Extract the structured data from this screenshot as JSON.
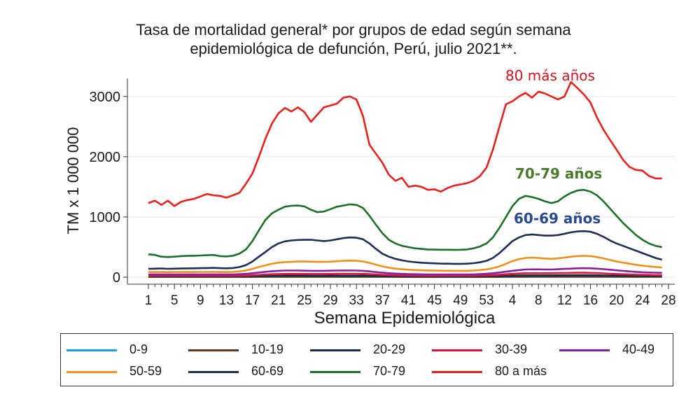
{
  "chart_data": {
    "type": "line",
    "title_lines": [
      "Tasa de mortalidad general* por grupos de edad según semana",
      "epidemiológica de defunción, Perú, julio 2021**."
    ],
    "xlabel": "Semana Epidemiológica",
    "ylabel": "TM x 1 000 000",
    "ylim": [
      0,
      3300
    ],
    "yticks": [
      0,
      1000,
      2000,
      3000
    ],
    "x_tick_labels": [
      "1",
      "5",
      "9",
      "13",
      "17",
      "21",
      "25",
      "29",
      "33",
      "37",
      "41",
      "45",
      "49",
      "53",
      "4",
      "8",
      "12",
      "16",
      "20",
      "24",
      "28"
    ],
    "x_tick_labels_minor_count": 81,
    "grid": true,
    "legend_position": "bottom",
    "x_count": 80,
    "series": [
      {
        "name": "0-9",
        "color": "#1f9ee8",
        "values": [
          8,
          8,
          8,
          8,
          8,
          8,
          8,
          8,
          8,
          8,
          8,
          8,
          8,
          8,
          8,
          8,
          8,
          8,
          8,
          8,
          8,
          8,
          8,
          8,
          8,
          8,
          8,
          8,
          8,
          8,
          8,
          8,
          8,
          8,
          8,
          8,
          8,
          8,
          8,
          8,
          8,
          8,
          8,
          8,
          8,
          8,
          8,
          8,
          8,
          8,
          8,
          8,
          8,
          8,
          8,
          8,
          8,
          8,
          8,
          8,
          8,
          8,
          8,
          8,
          8,
          8,
          8,
          8,
          8,
          8,
          8,
          8,
          8,
          8,
          8,
          8,
          8,
          8,
          8,
          8
        ]
      },
      {
        "name": "10-19",
        "color": "#5a3a1a",
        "values": [
          5,
          5,
          5,
          5,
          5,
          5,
          5,
          5,
          5,
          5,
          5,
          5,
          5,
          5,
          5,
          5,
          5,
          6,
          6,
          7,
          7,
          7,
          7,
          7,
          7,
          7,
          7,
          7,
          7,
          7,
          7,
          7,
          7,
          7,
          6,
          6,
          6,
          6,
          5,
          5,
          5,
          5,
          5,
          5,
          5,
          5,
          5,
          5,
          5,
          5,
          5,
          5,
          5,
          5,
          5,
          6,
          6,
          7,
          7,
          8,
          8,
          8,
          8,
          8,
          8,
          8,
          8,
          8,
          8,
          8,
          8,
          8,
          7,
          7,
          7,
          6,
          6,
          6,
          6,
          6
        ]
      },
      {
        "name": "20-29",
        "color": "#1b2a4a",
        "values": [
          12,
          12,
          12,
          12,
          12,
          12,
          12,
          12,
          12,
          12,
          12,
          12,
          12,
          12,
          13,
          14,
          16,
          18,
          20,
          22,
          24,
          25,
          25,
          25,
          25,
          24,
          24,
          24,
          25,
          25,
          26,
          26,
          26,
          25,
          23,
          20,
          18,
          16,
          15,
          14,
          13,
          13,
          12,
          12,
          12,
          12,
          12,
          12,
          12,
          12,
          12,
          13,
          14,
          16,
          18,
          22,
          25,
          28,
          30,
          30,
          30,
          30,
          30,
          31,
          32,
          33,
          34,
          34,
          33,
          31,
          29,
          27,
          25,
          23,
          22,
          20,
          19,
          18,
          17,
          17
        ]
      },
      {
        "name": "30-39",
        "color": "#d41c3c",
        "values": [
          22,
          22,
          22,
          22,
          22,
          22,
          22,
          22,
          22,
          22,
          22,
          22,
          22,
          22,
          24,
          27,
          32,
          38,
          44,
          50,
          54,
          56,
          56,
          56,
          56,
          55,
          55,
          55,
          56,
          57,
          58,
          58,
          58,
          56,
          52,
          46,
          40,
          35,
          32,
          30,
          28,
          27,
          26,
          26,
          25,
          25,
          25,
          25,
          25,
          25,
          26,
          28,
          31,
          36,
          42,
          50,
          56,
          62,
          66,
          66,
          66,
          66,
          66,
          68,
          70,
          72,
          74,
          74,
          72,
          68,
          64,
          58,
          54,
          50,
          46,
          42,
          40,
          38,
          36,
          35
        ]
      },
      {
        "name": "40-49",
        "color": "#8a1fa0",
        "values": [
          45,
          45,
          45,
          45,
          45,
          45,
          45,
          45,
          45,
          45,
          45,
          45,
          45,
          45,
          50,
          56,
          66,
          78,
          90,
          100,
          106,
          110,
          110,
          110,
          108,
          106,
          106,
          106,
          108,
          110,
          112,
          112,
          110,
          106,
          96,
          85,
          74,
          66,
          60,
          56,
          52,
          50,
          48,
          47,
          46,
          45,
          45,
          45,
          45,
          45,
          47,
          51,
          57,
          66,
          78,
          92,
          106,
          118,
          128,
          130,
          130,
          128,
          128,
          132,
          138,
          142,
          148,
          150,
          148,
          142,
          134,
          124,
          114,
          104,
          96,
          88,
          82,
          78,
          75,
          72
        ]
      },
      {
        "name": "50-59",
        "color": "#f0901a",
        "values": [
          85,
          86,
          86,
          85,
          86,
          86,
          86,
          86,
          87,
          87,
          88,
          86,
          86,
          88,
          96,
          112,
          138,
          170,
          198,
          222,
          240,
          250,
          255,
          260,
          262,
          258,
          255,
          254,
          258,
          265,
          272,
          275,
          272,
          262,
          238,
          208,
          180,
          158,
          142,
          132,
          124,
          118,
          114,
          112,
          110,
          108,
          107,
          106,
          106,
          106,
          110,
          118,
          130,
          150,
          180,
          222,
          268,
          300,
          320,
          325,
          318,
          310,
          306,
          312,
          325,
          340,
          350,
          355,
          350,
          334,
          312,
          286,
          262,
          242,
          224,
          206,
          192,
          180,
          170,
          162
        ]
      },
      {
        "name": "60-69",
        "color": "#1e2d54",
        "values": [
          140,
          142,
          145,
          140,
          142,
          144,
          146,
          148,
          150,
          152,
          155,
          150,
          148,
          152,
          168,
          200,
          260,
          340,
          420,
          500,
          560,
          595,
          610,
          618,
          620,
          622,
          610,
          600,
          610,
          630,
          650,
          660,
          655,
          630,
          560,
          470,
          390,
          340,
          305,
          280,
          262,
          250,
          240,
          235,
          230,
          226,
          224,
          222,
          222,
          224,
          232,
          248,
          272,
          320,
          400,
          500,
          600,
          660,
          700,
          710,
          700,
          690,
          690,
          700,
          720,
          745,
          760,
          765,
          755,
          720,
          670,
          610,
          560,
          520,
          480,
          440,
          400,
          360,
          320,
          290
        ]
      },
      {
        "name": "70-79",
        "color": "#1e6e2a",
        "values": [
          380,
          370,
          340,
          335,
          340,
          350,
          355,
          355,
          360,
          365,
          370,
          350,
          345,
          355,
          390,
          460,
          600,
          780,
          950,
          1060,
          1120,
          1170,
          1185,
          1190,
          1175,
          1120,
          1080,
          1090,
          1130,
          1170,
          1190,
          1210,
          1200,
          1150,
          1020,
          870,
          730,
          620,
          560,
          520,
          500,
          480,
          470,
          460,
          458,
          456,
          455,
          454,
          455,
          460,
          480,
          510,
          560,
          660,
          820,
          1000,
          1180,
          1300,
          1350,
          1330,
          1300,
          1260,
          1230,
          1260,
          1340,
          1400,
          1440,
          1450,
          1420,
          1360,
          1260,
          1140,
          1020,
          900,
          800,
          700,
          620,
          560,
          520,
          500
        ]
      },
      {
        "name": "80 a más",
        "color": "#e8201e",
        "values": [
          1230,
          1270,
          1200,
          1270,
          1180,
          1250,
          1280,
          1300,
          1340,
          1380,
          1360,
          1350,
          1320,
          1360,
          1400,
          1550,
          1720,
          2000,
          2300,
          2550,
          2720,
          2810,
          2750,
          2820,
          2740,
          2580,
          2700,
          2820,
          2850,
          2880,
          2980,
          3000,
          2950,
          2680,
          2200,
          2050,
          1900,
          1700,
          1600,
          1650,
          1500,
          1520,
          1500,
          1450,
          1460,
          1420,
          1480,
          1520,
          1540,
          1560,
          1600,
          1680,
          1820,
          2120,
          2500,
          2870,
          2920,
          3000,
          3060,
          2980,
          3080,
          3050,
          3000,
          2950,
          3000,
          3240,
          3140,
          3030,
          2900,
          2650,
          2450,
          2280,
          2120,
          1950,
          1830,
          1780,
          1770,
          1680,
          1640,
          1640
        ]
      }
    ],
    "annotations": [
      {
        "text": "80 más años",
        "color": "#d0141e"
      },
      {
        "text": "70-79 años",
        "color": "#4a7a2a"
      },
      {
        "text": "60-69 años",
        "color": "#2a4a8e"
      }
    ]
  },
  "legend": {
    "rows": [
      [
        "0-9",
        "10-19",
        "20-29",
        "30-39",
        "40-49"
      ],
      [
        "50-59",
        "60-69",
        "70-79",
        "80 a más"
      ]
    ]
  }
}
